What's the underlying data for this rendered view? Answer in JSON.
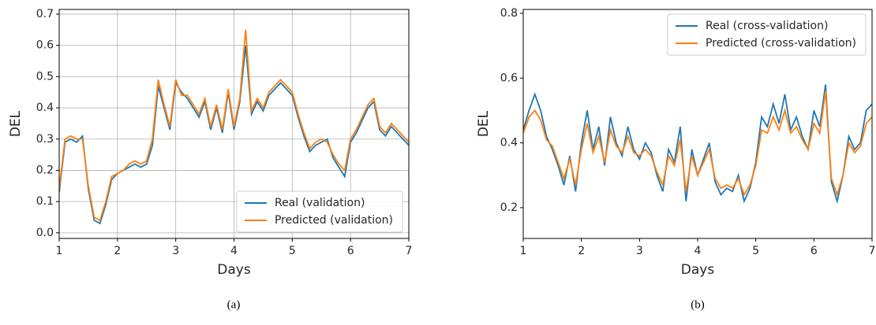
{
  "chart_data": [
    {
      "type": "line",
      "xlabel": "Days",
      "ylabel": "DEL",
      "caption": "(a)",
      "x": [
        1.0,
        1.1,
        1.2,
        1.3,
        1.4,
        1.5,
        1.6,
        1.7,
        1.8,
        1.9,
        2.0,
        2.1,
        2.2,
        2.3,
        2.4,
        2.5,
        2.6,
        2.7,
        2.8,
        2.9,
        3.0,
        3.1,
        3.2,
        3.3,
        3.4,
        3.5,
        3.6,
        3.7,
        3.8,
        3.9,
        4.0,
        4.1,
        4.2,
        4.3,
        4.4,
        4.5,
        4.6,
        4.7,
        4.8,
        4.9,
        5.0,
        5.1,
        5.2,
        5.3,
        5.4,
        5.5,
        5.6,
        5.7,
        5.8,
        5.9,
        6.0,
        6.1,
        6.2,
        6.3,
        6.4,
        6.5,
        6.6,
        6.7,
        6.8,
        6.9,
        7.0
      ],
      "series": [
        {
          "name": "Real (validation)",
          "color": "#1f77b4",
          "values": [
            0.13,
            0.29,
            0.3,
            0.29,
            0.31,
            0.14,
            0.04,
            0.03,
            0.09,
            0.17,
            0.19,
            0.2,
            0.21,
            0.22,
            0.21,
            0.22,
            0.28,
            0.47,
            0.4,
            0.33,
            0.48,
            0.45,
            0.43,
            0.4,
            0.37,
            0.42,
            0.33,
            0.4,
            0.32,
            0.45,
            0.33,
            0.42,
            0.6,
            0.38,
            0.42,
            0.39,
            0.44,
            0.46,
            0.48,
            0.46,
            0.44,
            0.37,
            0.31,
            0.26,
            0.28,
            0.29,
            0.3,
            0.24,
            0.21,
            0.18,
            0.29,
            0.32,
            0.36,
            0.4,
            0.42,
            0.33,
            0.31,
            0.34,
            0.32,
            0.3,
            0.28
          ]
        },
        {
          "name": "Predicted (validation)",
          "color": "#ff7f0e",
          "values": [
            0.14,
            0.3,
            0.31,
            0.3,
            0.3,
            0.15,
            0.05,
            0.04,
            0.1,
            0.18,
            0.19,
            0.2,
            0.22,
            0.23,
            0.22,
            0.23,
            0.3,
            0.49,
            0.41,
            0.34,
            0.49,
            0.44,
            0.44,
            0.41,
            0.38,
            0.43,
            0.34,
            0.41,
            0.33,
            0.46,
            0.34,
            0.43,
            0.65,
            0.39,
            0.43,
            0.4,
            0.45,
            0.47,
            0.49,
            0.47,
            0.45,
            0.38,
            0.32,
            0.27,
            0.29,
            0.3,
            0.29,
            0.25,
            0.22,
            0.2,
            0.3,
            0.33,
            0.37,
            0.41,
            0.43,
            0.34,
            0.32,
            0.35,
            0.33,
            0.31,
            0.29
          ]
        }
      ],
      "xlim": [
        1,
        7
      ],
      "ylim": [
        -0.018,
        0.715
      ],
      "xticks": [
        1,
        2,
        3,
        4,
        5,
        6,
        7
      ],
      "yticks": [
        {
          "value": 0,
          "label": "0.0"
        },
        0.1,
        0.2,
        0.3,
        0.4,
        0.5,
        0.6,
        0.7
      ],
      "grid": true,
      "legend": "lower right"
    },
    {
      "type": "line",
      "xlabel": "Days",
      "ylabel": "DEL",
      "caption": "(b)",
      "x": [
        1.0,
        1.1,
        1.2,
        1.3,
        1.4,
        1.5,
        1.6,
        1.7,
        1.8,
        1.9,
        2.0,
        2.1,
        2.2,
        2.3,
        2.4,
        2.5,
        2.6,
        2.7,
        2.8,
        2.9,
        3.0,
        3.1,
        3.2,
        3.3,
        3.4,
        3.5,
        3.6,
        3.7,
        3.8,
        3.9,
        4.0,
        4.1,
        4.2,
        4.3,
        4.4,
        4.5,
        4.6,
        4.7,
        4.8,
        4.9,
        5.0,
        5.1,
        5.2,
        5.3,
        5.4,
        5.5,
        5.6,
        5.7,
        5.8,
        5.9,
        6.0,
        6.1,
        6.2,
        6.3,
        6.4,
        6.5,
        6.6,
        6.7,
        6.8,
        6.9,
        7.0
      ],
      "series": [
        {
          "name": "Real (cross-validation)",
          "color": "#1f77b4",
          "values": [
            0.44,
            0.5,
            0.55,
            0.5,
            0.42,
            0.38,
            0.33,
            0.27,
            0.36,
            0.25,
            0.4,
            0.5,
            0.38,
            0.45,
            0.33,
            0.48,
            0.4,
            0.36,
            0.45,
            0.38,
            0.35,
            0.4,
            0.37,
            0.3,
            0.25,
            0.38,
            0.34,
            0.45,
            0.22,
            0.38,
            0.3,
            0.35,
            0.4,
            0.28,
            0.24,
            0.26,
            0.25,
            0.3,
            0.22,
            0.26,
            0.34,
            0.48,
            0.45,
            0.52,
            0.46,
            0.55,
            0.44,
            0.48,
            0.42,
            0.38,
            0.5,
            0.45,
            0.58,
            0.28,
            0.22,
            0.3,
            0.42,
            0.38,
            0.4,
            0.5,
            0.52
          ]
        },
        {
          "name": "Predicted (cross-validation)",
          "color": "#ff7f0e",
          "values": [
            0.43,
            0.48,
            0.5,
            0.47,
            0.41,
            0.39,
            0.34,
            0.29,
            0.35,
            0.27,
            0.38,
            0.46,
            0.37,
            0.42,
            0.34,
            0.44,
            0.39,
            0.37,
            0.42,
            0.37,
            0.36,
            0.38,
            0.36,
            0.31,
            0.27,
            0.36,
            0.33,
            0.41,
            0.25,
            0.36,
            0.3,
            0.34,
            0.38,
            0.29,
            0.26,
            0.27,
            0.26,
            0.29,
            0.24,
            0.27,
            0.33,
            0.44,
            0.43,
            0.48,
            0.44,
            0.5,
            0.43,
            0.45,
            0.41,
            0.38,
            0.46,
            0.43,
            0.56,
            0.29,
            0.24,
            0.3,
            0.4,
            0.37,
            0.39,
            0.46,
            0.48
          ]
        }
      ],
      "xlim": [
        1,
        7
      ],
      "ylim": [
        0.105,
        0.812
      ],
      "xticks": [
        1,
        2,
        3,
        4,
        5,
        6,
        7
      ],
      "yticks": [
        0.2,
        0.4,
        0.6,
        0.8
      ],
      "grid": false,
      "legend": "upper right"
    }
  ]
}
